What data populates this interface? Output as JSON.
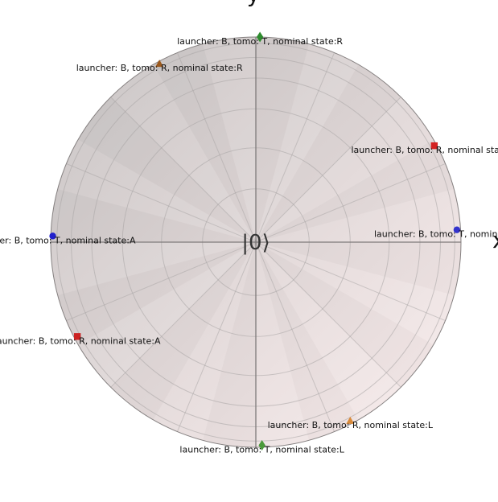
{
  "chart_data": {
    "type": "scatter",
    "projection": "bloch-sphere",
    "center_label": "|0⟩",
    "axis_labels": {
      "top": "y",
      "right": "x"
    },
    "grid": true,
    "colors": {
      "sphere_left": "#c6c2c2",
      "sphere_right": "#fbeeee",
      "grid": "#a8a4a4",
      "axes": "#7e7a7a",
      "outline": "#858080"
    },
    "points": [
      {
        "label": "launcher: B, tomo: T, nominal state:R",
        "marker": "diamond",
        "color": "#2e8b2e",
        "x": 0.02,
        "y": 1.0
      },
      {
        "label": "launcher: B, tomo: R, nominal state:R",
        "marker": "triangle",
        "color": "#9c5a1e",
        "x": -0.47,
        "y": 0.87
      },
      {
        "label": "launcher: B, tomo: R, nominal state:A",
        "marker": "square",
        "color": "#d42222",
        "x": 0.87,
        "y": 0.47
      },
      {
        "label": "launcher: B, tomo: T, nominal state:A",
        "marker": "circle",
        "color": "#3333cc",
        "x": 0.98,
        "y": 0.06
      },
      {
        "label": "launcher: B, tomo: T, nominal state:A",
        "marker": "circle",
        "color": "#2020cc",
        "x": -0.99,
        "y": 0.03
      },
      {
        "label": "launcher: B, tomo: R, nominal state:A",
        "marker": "square",
        "color": "#cc2222",
        "x": -0.87,
        "y": -0.46
      },
      {
        "label": "launcher: B, tomo: R, nominal state:L",
        "marker": "triangle",
        "color": "#d98a3a",
        "x": 0.46,
        "y": -0.87
      },
      {
        "label": "launcher: B, tomo: T, nominal state:L",
        "marker": "diamond",
        "color": "#4a9a3a",
        "x": 0.03,
        "y": -0.99
      }
    ]
  }
}
